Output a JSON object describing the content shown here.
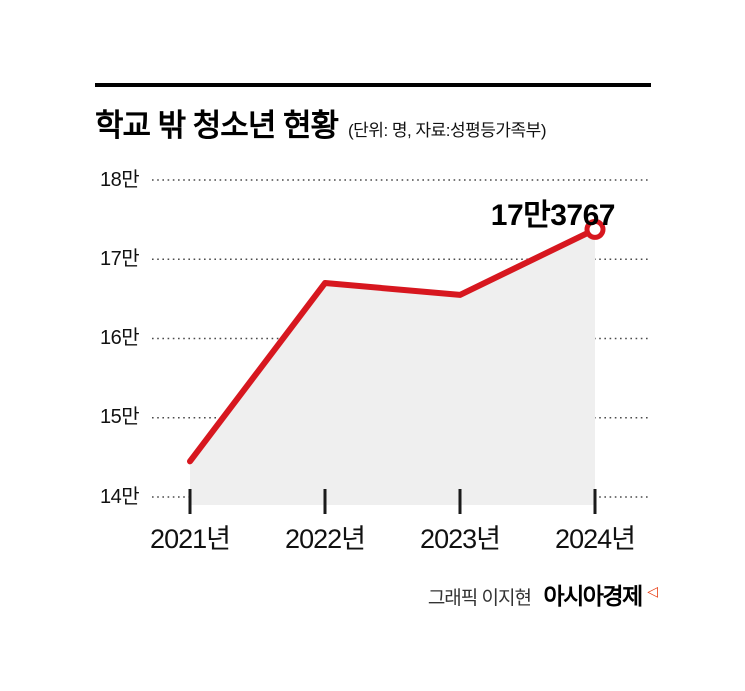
{
  "header": {
    "title": "학교 밖 청소년 현황",
    "subtitle": "(단위: 명, 자료:성평등가족부)"
  },
  "chart_data": {
    "type": "line",
    "title": "학교 밖 청소년 현황",
    "unit_source_note": "(단위: 명, 자료:성평등가족부)",
    "categories": [
      "2021년",
      "2022년",
      "2023년",
      "2024년"
    ],
    "values": [
      144500,
      167000,
      165500,
      173767
    ],
    "ylim": [
      140000,
      180000
    ],
    "ytick_step": 10000,
    "ytick_labels": [
      "14만",
      "15만",
      "16만",
      "17만",
      "18만"
    ],
    "annotation": {
      "label": "17만3767",
      "category": "2024년",
      "value": 173767
    },
    "line_color": "#d7171f",
    "area_color": "#efefef",
    "grid": "dotted horizontal",
    "legend": "none"
  },
  "footer": {
    "credit": "그래픽 이지현",
    "brand": "아시아경제",
    "brand_mark": "◁"
  }
}
